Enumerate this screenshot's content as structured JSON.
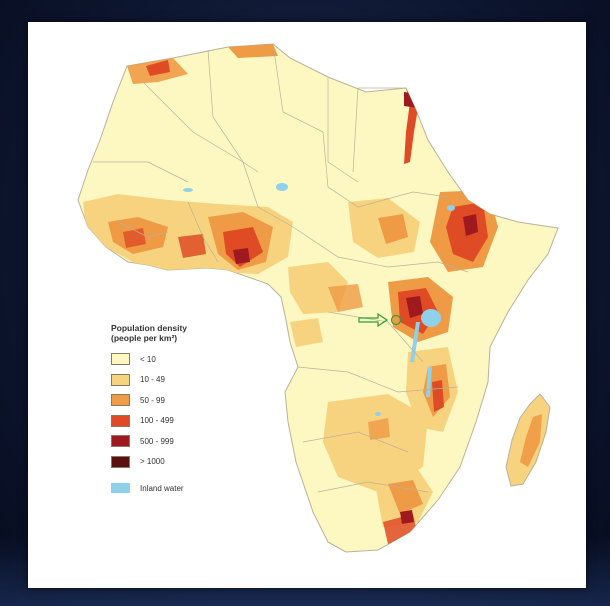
{
  "map": {
    "legend": {
      "title": "Population density\n(people per km²)",
      "classes": [
        {
          "label": "< 10",
          "color": "#fdf8c2"
        },
        {
          "label": "10 - 49",
          "color": "#f7d37f"
        },
        {
          "label": "50 - 99",
          "color": "#ef9a45"
        },
        {
          "label": "100 - 499",
          "color": "#df4b24"
        },
        {
          "label": "500 - 999",
          "color": "#9e1a1f"
        },
        {
          "label": "> 1000",
          "color": "#5a0f12"
        }
      ],
      "water": {
        "label": "Inland water",
        "color": "#8fd0ea"
      }
    },
    "marker": {
      "icon": "arrow-right-icon",
      "color": "#2e9e3a"
    }
  }
}
